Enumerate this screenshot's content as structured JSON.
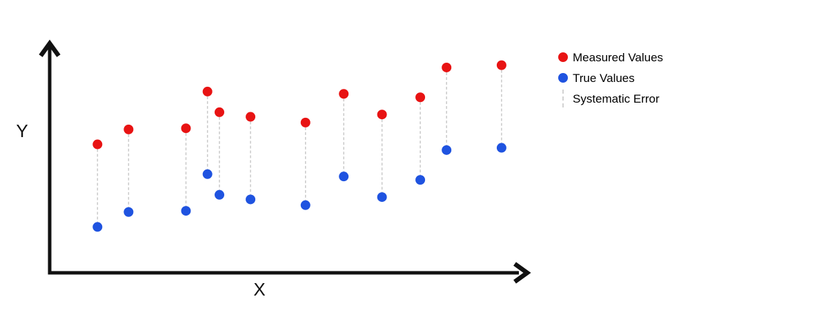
{
  "figure": {
    "background": "#ffffff"
  },
  "axes": {
    "x_label": "X",
    "y_label": "Y",
    "color": "#111111"
  },
  "legend": {
    "items": [
      {
        "label": "Measured Values",
        "marker": "dot",
        "color": "#e81313"
      },
      {
        "label": "True Values",
        "marker": "dot",
        "color": "#1f53e0"
      },
      {
        "label": "Systematic Error",
        "marker": "dashed-line",
        "color": "#d2d2d2"
      }
    ]
  },
  "chart_data": {
    "type": "scatter",
    "title": "",
    "xlabel": "X",
    "ylabel": "Y",
    "xlim": [
      0,
      10
    ],
    "ylim": [
      0,
      10
    ],
    "grid": false,
    "axis_ticks": "none (conceptual unlabeled axes with arrowheads)",
    "legend_position": "outside upper-right",
    "x": [
      1.0,
      1.65,
      2.85,
      3.3,
      3.55,
      4.2,
      5.35,
      6.15,
      6.95,
      7.75,
      8.3,
      9.45
    ],
    "series": [
      {
        "name": "Measured Values",
        "color": "#e81313",
        "values": [
          5.6,
          6.25,
          6.3,
          7.9,
          7.0,
          6.8,
          6.55,
          7.8,
          6.9,
          7.65,
          8.95,
          9.05
        ]
      },
      {
        "name": "True Values",
        "color": "#1f53e0",
        "values": [
          2.0,
          2.65,
          2.7,
          4.3,
          3.4,
          3.2,
          2.95,
          4.2,
          3.3,
          4.05,
          5.35,
          5.45
        ]
      }
    ],
    "error_connectors": {
      "name": "Systematic Error",
      "style": "dashed",
      "color": "#c9c9c9",
      "constant_offset": 3.6
    }
  }
}
